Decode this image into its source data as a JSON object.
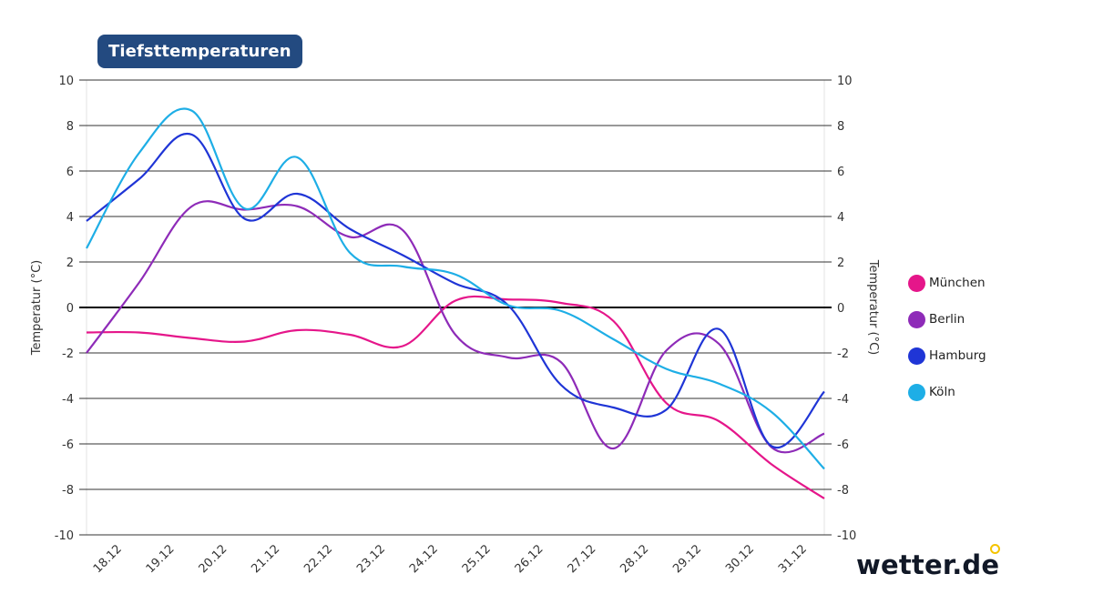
{
  "header": {
    "title": "Tiefsttemperaturen"
  },
  "branding": {
    "logo_text": "wetter.de",
    "logo_accent_color": "#f5c400"
  },
  "chart_data": {
    "type": "line",
    "title": "Tiefsttemperaturen",
    "xlabel": "",
    "ylabel": "Temperatur (°C)",
    "ylabel_right": "Temperatur (°C)",
    "ylim": [
      -10,
      10
    ],
    "yticks": [
      10,
      8,
      6,
      4,
      2,
      0,
      -2,
      -4,
      -6,
      -8,
      -10
    ],
    "categories": [
      "18.12",
      "19.12",
      "20.12",
      "21.12",
      "22.12",
      "23.12",
      "24.12",
      "25.12",
      "26.12",
      "27.12",
      "28.12",
      "29.12",
      "30.12",
      "31.12"
    ],
    "x_points": 15,
    "grid": true,
    "legend_position": "right",
    "series": [
      {
        "name": "München",
        "color": "#e5168a",
        "values": [
          -1.1,
          -1.1,
          -1.35,
          -1.5,
          -1.0,
          -1.2,
          -1.7,
          0.3,
          0.35,
          0.2,
          -0.6,
          -4.2,
          -5.0,
          -6.9,
          -8.4
        ]
      },
      {
        "name": "Berlin",
        "color": "#8e2bb8",
        "values": [
          -2.0,
          1.1,
          4.45,
          4.3,
          4.45,
          3.1,
          3.4,
          -1.2,
          -2.2,
          -2.4,
          -6.2,
          -1.9,
          -1.6,
          -6.15,
          -5.55
        ]
      },
      {
        "name": "Hamburg",
        "color": "#1f35d6",
        "values": [
          3.8,
          5.65,
          7.6,
          3.9,
          5.0,
          3.45,
          2.3,
          1.05,
          0.1,
          -3.4,
          -4.4,
          -4.5,
          -0.95,
          -6.1,
          -3.7
        ]
      },
      {
        "name": "Köln",
        "color": "#1eaee6",
        "values": [
          2.6,
          6.8,
          8.65,
          4.35,
          6.6,
          2.4,
          1.8,
          1.45,
          0.1,
          -0.15,
          -1.4,
          -2.7,
          -3.35,
          -4.6,
          -7.1
        ]
      }
    ]
  }
}
